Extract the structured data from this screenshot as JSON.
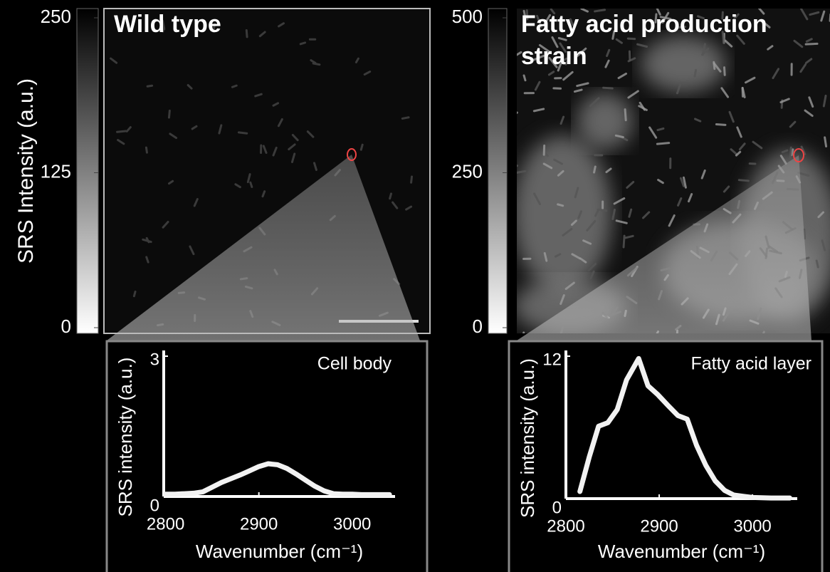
{
  "colorbar_label": "SRS Intensity (a.u.)",
  "images": [
    {
      "title_lines": [
        "Wild type"
      ],
      "colorbar_ticks": [
        0,
        125,
        250
      ]
    },
    {
      "title_lines": [
        "Fatty acid production",
        "strain"
      ],
      "colorbar_ticks": [
        0,
        250,
        500
      ]
    }
  ],
  "chart_data": [
    {
      "type": "line",
      "annotation": "Cell body",
      "xlabel": "Wavenumber (cm⁻¹)",
      "ylabel": "SRS intensity (a.u.)",
      "color": "#f2f2f2",
      "x": [
        2800,
        2810,
        2820,
        2830,
        2840,
        2850,
        2860,
        2870,
        2880,
        2890,
        2900,
        2910,
        2920,
        2930,
        2940,
        2950,
        2960,
        2970,
        2980,
        2990,
        3000,
        3010,
        3020,
        3030,
        3040
      ],
      "values": [
        0.05,
        0.05,
        0.06,
        0.07,
        0.1,
        0.2,
        0.3,
        0.38,
        0.46,
        0.55,
        0.64,
        0.7,
        0.68,
        0.6,
        0.48,
        0.35,
        0.22,
        0.12,
        0.06,
        0.05,
        0.05,
        0.04,
        0.04,
        0.04,
        0.04
      ],
      "xlim": [
        2798,
        3046
      ],
      "xticks": [
        2800,
        2900,
        3000
      ],
      "ylim": [
        0,
        3
      ],
      "yticks": [
        0,
        3
      ]
    },
    {
      "type": "line",
      "annotation": "Fatty acid layer",
      "xlabel": "Wavenumber (cm⁻¹)",
      "ylabel": "SRS intensity (a.u.)",
      "color": "#f2f2f2",
      "x": [
        2815,
        2825,
        2835,
        2845,
        2855,
        2865,
        2878,
        2888,
        2898,
        2910,
        2920,
        2930,
        2940,
        2950,
        2960,
        2970,
        2980,
        2990,
        3000,
        3020,
        3040
      ],
      "values": [
        0.6,
        3.5,
        6.1,
        6.4,
        7.5,
        10,
        11.8,
        9.5,
        8.8,
        7.8,
        7.0,
        6.7,
        4.5,
        2.8,
        1.5,
        0.7,
        0.3,
        0.2,
        0.1,
        0.05,
        0.05
      ],
      "xlim": [
        2800,
        3048
      ],
      "xticks": [
        2800,
        2900,
        3000
      ],
      "ylim": [
        0,
        12
      ],
      "yticks": [
        0,
        12
      ]
    }
  ]
}
